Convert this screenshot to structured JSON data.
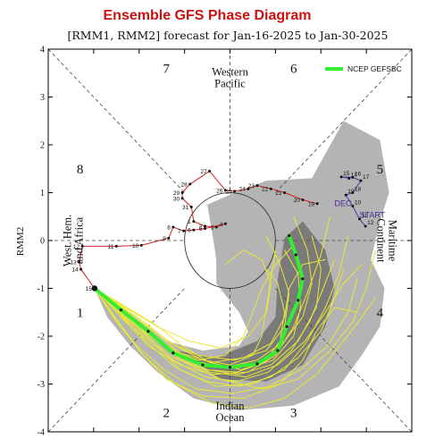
{
  "chart_data": {
    "type": "scatter",
    "title": "Ensemble GFS Phase Diagram",
    "subtitle": "[RMM1, RMM2] forecast for Jan-16-2025 to Jan-30-2025",
    "xlabel": "",
    "ylabel": "RMM2",
    "xlim": [
      -4,
      4
    ],
    "ylim": [
      -4,
      4
    ],
    "x_ticks": [
      "-4",
      "-3",
      "-2",
      "-1",
      "0",
      "1",
      "2",
      "3",
      "4"
    ],
    "y_ticks": [
      "-4",
      "-3",
      "-2",
      "-1",
      "0",
      "1",
      "2",
      "3",
      "4"
    ],
    "grid": false,
    "phases": [
      {
        "label": "1",
        "x": -3.3,
        "y": -1.5
      },
      {
        "label": "2",
        "x": -1.4,
        "y": -3.6
      },
      {
        "label": "3",
        "x": 1.4,
        "y": -3.6
      },
      {
        "label": "4",
        "x": 3.3,
        "y": -1.5
      },
      {
        "label": "5",
        "x": 3.3,
        "y": 1.5
      },
      {
        "label": "6",
        "x": 1.4,
        "y": 3.6
      },
      {
        "label": "7",
        "x": -1.4,
        "y": 3.6
      },
      {
        "label": "8",
        "x": -3.3,
        "y": 1.5
      }
    ],
    "regions": [
      {
        "lines": [
          "Western",
          "Pacific"
        ],
        "x": 0,
        "y": 3.4,
        "rotate": 0
      },
      {
        "lines": [
          "Indian",
          "Ocean"
        ],
        "x": 0,
        "y": -3.58,
        "rotate": 0
      },
      {
        "lines": [
          "West. Hem.",
          "and Africa"
        ],
        "x": -3.45,
        "y": 0,
        "rotate": -90
      },
      {
        "lines": [
          "Maritime",
          "Continent"
        ],
        "x": 3.45,
        "y": 0,
        "rotate": 90
      }
    ],
    "legend": {
      "label": "NCEP GEFSBC",
      "color": "#33ee33",
      "position": "top-right"
    },
    "observed": {
      "color": "#cc2222",
      "points": [
        {
          "d": "19",
          "x": 1.92,
          "y": 0.77
        },
        {
          "d": "20",
          "x": 1.6,
          "y": 0.85
        },
        {
          "d": "21",
          "x": 1.2,
          "y": 1.0
        },
        {
          "d": "22",
          "x": 0.9,
          "y": 1.08
        },
        {
          "d": "23",
          "x": 0.6,
          "y": 1.15
        },
        {
          "d": "24",
          "x": 0.4,
          "y": 1.08
        },
        {
          "d": "25",
          "x": 0.1,
          "y": 1.03
        },
        {
          "d": "26",
          "x": -0.1,
          "y": 1.05
        },
        {
          "d": "27",
          "x": -0.45,
          "y": 1.45
        },
        {
          "d": "28",
          "x": -0.88,
          "y": 1.18
        },
        {
          "d": "29",
          "x": -1.05,
          "y": 1.0
        },
        {
          "d": "30",
          "x": -1.05,
          "y": 0.88
        },
        {
          "d": "31",
          "x": -0.85,
          "y": 0.7
        },
        {
          "d": "1",
          "x": -0.8,
          "y": 0.4
        },
        {
          "d": "2",
          "x": -0.55,
          "y": 0.3
        },
        {
          "d": "3",
          "x": -0.3,
          "y": 0.28
        },
        {
          "d": "4",
          "x": -0.1,
          "y": 0.35
        },
        {
          "d": "5",
          "x": -0.55,
          "y": 0.25
        },
        {
          "d": "6",
          "x": -0.8,
          "y": 0.22
        },
        {
          "d": "7",
          "x": -1.02,
          "y": 0.2
        },
        {
          "d": "8",
          "x": -1.25,
          "y": 0.28
        },
        {
          "d": "9",
          "x": -1.35,
          "y": 0.05
        },
        {
          "d": "10",
          "x": -1.95,
          "y": -0.1
        },
        {
          "d": "11",
          "x": -2.5,
          "y": -0.12
        },
        {
          "d": "12",
          "x": -3.25,
          "y": -0.12
        },
        {
          "d": "13",
          "x": -3.32,
          "y": -0.45
        },
        {
          "d": "14",
          "x": -3.28,
          "y": -0.6
        },
        {
          "d": "15",
          "x": -2.98,
          "y": -1.0
        }
      ]
    },
    "start_track": {
      "color": "#5533aa",
      "points": [
        {
          "d": "14",
          "x": 2.62,
          "y": 1.3
        },
        {
          "d": "15",
          "x": 2.45,
          "y": 1.33
        },
        {
          "d": "16",
          "x": 2.7,
          "y": 1.32
        },
        {
          "d": "17",
          "x": 2.88,
          "y": 1.25
        },
        {
          "d": "18",
          "x": 2.7,
          "y": 1.0
        },
        {
          "d": "19",
          "x": 2.55,
          "y": 0.95
        },
        {
          "d": "10",
          "x": 2.7,
          "y": 0.72
        },
        {
          "d": "11",
          "x": 2.85,
          "y": 0.45
        },
        {
          "d": "12",
          "x": 2.98,
          "y": 0.3
        }
      ]
    },
    "text_labels": [
      {
        "text": "DEC",
        "x": 2.3,
        "y": 0.72
      },
      {
        "text": "START",
        "x": 2.85,
        "y": 0.48
      }
    ],
    "ensemble_mean": {
      "name": "NCEP GEFSBC",
      "color": "#33ee33",
      "points": [
        {
          "x": -2.98,
          "y": -1.0
        },
        {
          "x": -2.4,
          "y": -1.45
        },
        {
          "x": -1.8,
          "y": -1.9
        },
        {
          "x": -1.25,
          "y": -2.35
        },
        {
          "x": -0.6,
          "y": -2.6
        },
        {
          "x": 0.0,
          "y": -2.65
        },
        {
          "x": 0.6,
          "y": -2.58
        },
        {
          "x": 1.05,
          "y": -2.3
        },
        {
          "x": 1.25,
          "y": -1.8
        },
        {
          "x": 1.5,
          "y": -1.25
        },
        {
          "x": 1.6,
          "y": -0.8
        },
        {
          "x": 1.45,
          "y": -0.3
        },
        {
          "x": 1.3,
          "y": 0.1
        }
      ]
    },
    "spread_outer": [
      [
        -2.98,
        -1.0
      ],
      [
        -2.7,
        -1.6
      ],
      [
        -2.2,
        -2.2
      ],
      [
        -1.6,
        -2.75
      ],
      [
        -0.8,
        -3.3
      ],
      [
        0.2,
        -3.55
      ],
      [
        1.4,
        -3.45
      ],
      [
        2.4,
        -3.05
      ],
      [
        2.9,
        -2.4
      ],
      [
        3.3,
        -1.8
      ],
      [
        3.4,
        -1.0
      ],
      [
        3.1,
        -0.4
      ],
      [
        3.3,
        0.4
      ],
      [
        3.5,
        1.0
      ],
      [
        3.3,
        2.1
      ],
      [
        2.5,
        2.5
      ],
      [
        1.8,
        1.3
      ],
      [
        0.8,
        1.25
      ],
      [
        0.1,
        1.0
      ],
      [
        -0.5,
        0.75
      ],
      [
        -0.4,
        0.2
      ],
      [
        -0.3,
        -0.4
      ],
      [
        -0.3,
        -0.9
      ],
      [
        0.2,
        -1.5
      ],
      [
        0.4,
        -1.9
      ],
      [
        0.2,
        -2.2
      ],
      [
        -0.6,
        -2.3
      ],
      [
        -1.4,
        -2.1
      ],
      [
        -2.2,
        -1.5
      ]
    ],
    "spread_inner": [
      [
        -1.2,
        -2.3
      ],
      [
        -0.2,
        -2.9
      ],
      [
        0.8,
        -2.95
      ],
      [
        1.6,
        -2.6
      ],
      [
        2.1,
        -1.8
      ],
      [
        2.3,
        -1.0
      ],
      [
        2.1,
        -0.2
      ],
      [
        1.6,
        0.4
      ],
      [
        1.2,
        0.05
      ],
      [
        1.05,
        -0.8
      ],
      [
        1.0,
        -1.6
      ],
      [
        0.6,
        -2.1
      ],
      [
        -0.3,
        -2.45
      ]
    ],
    "members": [
      [
        [
          -2.98,
          -1.0
        ],
        [
          -2.3,
          -1.55
        ],
        [
          -1.7,
          -2.1
        ],
        [
          -1.1,
          -2.7
        ],
        [
          -0.3,
          -3.05
        ],
        [
          0.5,
          -3.0
        ],
        [
          1.2,
          -2.7
        ],
        [
          1.7,
          -2.1
        ],
        [
          2.1,
          -1.4
        ],
        [
          2.4,
          -0.7
        ],
        [
          2.6,
          0.1
        ]
      ],
      [
        [
          -2.98,
          -1.0
        ],
        [
          -2.5,
          -1.3
        ],
        [
          -1.9,
          -1.7
        ],
        [
          -1.3,
          -2.15
        ],
        [
          -0.7,
          -2.4
        ],
        [
          0.1,
          -2.5
        ],
        [
          0.8,
          -2.3
        ],
        [
          1.2,
          -1.8
        ],
        [
          1.3,
          -1.1
        ],
        [
          1.1,
          -0.5
        ],
        [
          0.8,
          0.1
        ]
      ],
      [
        [
          -2.98,
          -1.0
        ],
        [
          -2.4,
          -1.5
        ],
        [
          -1.7,
          -2.0
        ],
        [
          -1.0,
          -2.55
        ],
        [
          -0.2,
          -2.9
        ],
        [
          0.7,
          -3.1
        ],
        [
          1.5,
          -2.9
        ],
        [
          2.2,
          -2.3
        ],
        [
          2.7,
          -1.7
        ],
        [
          3.0,
          -1.0
        ],
        [
          3.2,
          -0.2
        ]
      ],
      [
        [
          -2.98,
          -1.0
        ],
        [
          -2.6,
          -1.5
        ],
        [
          -2.0,
          -2.3
        ],
        [
          -1.4,
          -2.9
        ],
        [
          -0.6,
          -3.25
        ],
        [
          0.3,
          -3.3
        ],
        [
          1.1,
          -3.0
        ],
        [
          1.6,
          -2.5
        ],
        [
          1.9,
          -1.9
        ],
        [
          2.3,
          -1.4
        ],
        [
          2.8,
          -1.5
        ]
      ],
      [
        [
          -2.98,
          -1.0
        ],
        [
          -2.3,
          -1.4
        ],
        [
          -1.6,
          -1.8
        ],
        [
          -0.9,
          -2.1
        ],
        [
          -0.2,
          -2.25
        ],
        [
          0.4,
          -2.0
        ],
        [
          0.8,
          -1.5
        ],
        [
          0.9,
          -0.9
        ],
        [
          0.7,
          -0.4
        ],
        [
          0.3,
          -0.2
        ],
        [
          -0.1,
          -0.5
        ]
      ],
      [
        [
          -2.98,
          -1.0
        ],
        [
          -2.4,
          -1.6
        ],
        [
          -1.8,
          -2.2
        ],
        [
          -1.1,
          -2.6
        ],
        [
          -0.4,
          -2.8
        ],
        [
          0.4,
          -2.75
        ],
        [
          1.0,
          -2.4
        ],
        [
          1.4,
          -1.8
        ],
        [
          1.7,
          -1.1
        ],
        [
          2.0,
          -0.3
        ],
        [
          2.2,
          0.5
        ]
      ],
      [
        [
          -2.98,
          -1.0
        ],
        [
          -2.35,
          -1.45
        ],
        [
          -1.75,
          -1.95
        ],
        [
          -1.15,
          -2.4
        ],
        [
          -0.5,
          -2.7
        ],
        [
          0.2,
          -2.8
        ],
        [
          0.9,
          -2.6
        ],
        [
          1.5,
          -2.1
        ],
        [
          1.9,
          -1.4
        ],
        [
          2.0,
          -0.6
        ],
        [
          1.8,
          0.1
        ]
      ],
      [
        [
          -2.98,
          -1.0
        ],
        [
          -2.5,
          -1.7
        ],
        [
          -1.9,
          -2.4
        ],
        [
          -1.2,
          -3.0
        ],
        [
          -0.4,
          -3.4
        ],
        [
          0.4,
          -3.5
        ],
        [
          1.2,
          -3.3
        ],
        [
          1.9,
          -2.8
        ],
        [
          2.5,
          -2.1
        ],
        [
          2.9,
          -1.6
        ],
        [
          3.2,
          -1.2
        ]
      ],
      [
        [
          -2.98,
          -1.0
        ],
        [
          -2.4,
          -1.4
        ],
        [
          -1.8,
          -1.8
        ],
        [
          -1.2,
          -2.2
        ],
        [
          -0.6,
          -2.5
        ],
        [
          0.0,
          -2.6
        ],
        [
          0.5,
          -2.4
        ],
        [
          0.7,
          -2.0
        ],
        [
          0.8,
          -1.4
        ],
        [
          0.9,
          -0.8
        ],
        [
          1.0,
          -0.2
        ]
      ],
      [
        [
          -2.98,
          -1.0
        ],
        [
          -2.3,
          -1.5
        ],
        [
          -1.6,
          -2.05
        ],
        [
          -0.9,
          -2.5
        ],
        [
          -0.1,
          -2.65
        ],
        [
          0.6,
          -2.5
        ],
        [
          1.2,
          -2.1
        ],
        [
          1.6,
          -1.6
        ],
        [
          1.8,
          -0.9
        ],
        [
          1.7,
          -0.2
        ],
        [
          1.4,
          0.5
        ]
      ],
      [
        [
          -2.98,
          -1.0
        ],
        [
          -2.45,
          -1.55
        ],
        [
          -1.85,
          -2.05
        ],
        [
          -1.25,
          -2.5
        ],
        [
          -0.55,
          -2.85
        ],
        [
          0.15,
          -2.95
        ],
        [
          0.85,
          -2.75
        ],
        [
          1.35,
          -2.3
        ],
        [
          1.75,
          -1.7
        ],
        [
          2.05,
          -1.0
        ],
        [
          2.3,
          -0.4
        ]
      ],
      [
        [
          -2.98,
          -1.0
        ],
        [
          -2.35,
          -1.35
        ],
        [
          -1.65,
          -1.75
        ],
        [
          -1.05,
          -2.2
        ],
        [
          -0.45,
          -2.55
        ],
        [
          0.25,
          -2.7
        ],
        [
          0.95,
          -2.5
        ],
        [
          1.4,
          -2.0
        ],
        [
          1.55,
          -1.4
        ],
        [
          1.5,
          -0.7
        ],
        [
          1.2,
          -0.2
        ]
      ],
      [
        [
          -2.98,
          -1.0
        ],
        [
          -2.55,
          -1.6
        ],
        [
          -2.05,
          -2.2
        ],
        [
          -1.45,
          -2.7
        ],
        [
          -0.75,
          -3.1
        ],
        [
          0.05,
          -3.2
        ],
        [
          0.85,
          -3.05
        ],
        [
          1.55,
          -2.7
        ],
        [
          2.15,
          -2.2
        ],
        [
          2.6,
          -1.5
        ],
        [
          2.8,
          -0.8
        ]
      ],
      [
        [
          -2.98,
          -1.0
        ],
        [
          -2.3,
          -1.45
        ],
        [
          -1.7,
          -1.9
        ],
        [
          -1.1,
          -2.35
        ],
        [
          -0.4,
          -2.55
        ],
        [
          0.3,
          -2.45
        ],
        [
          0.9,
          -2.15
        ],
        [
          1.2,
          -1.6
        ],
        [
          1.3,
          -1.0
        ],
        [
          1.6,
          -0.5
        ],
        [
          2.1,
          -0.4
        ]
      ],
      [
        [
          -2.98,
          -1.0
        ],
        [
          -2.4,
          -1.55
        ],
        [
          -1.8,
          -2.15
        ],
        [
          -1.2,
          -2.65
        ],
        [
          -0.5,
          -2.95
        ],
        [
          0.2,
          -3.05
        ],
        [
          0.9,
          -2.85
        ],
        [
          1.5,
          -2.45
        ],
        [
          2.0,
          -1.9
        ],
        [
          2.3,
          -1.2
        ],
        [
          2.5,
          -0.6
        ]
      ],
      [
        [
          -2.98,
          -1.0
        ],
        [
          -2.45,
          -1.5
        ],
        [
          -1.85,
          -2.0
        ],
        [
          -1.25,
          -2.45
        ],
        [
          -0.55,
          -2.7
        ],
        [
          0.15,
          -2.75
        ],
        [
          0.75,
          -2.55
        ],
        [
          1.1,
          -2.1
        ],
        [
          1.2,
          -1.5
        ],
        [
          1.05,
          -0.9
        ],
        [
          0.8,
          -0.6
        ]
      ],
      [
        [
          -2.98,
          -1.0
        ],
        [
          -2.35,
          -1.5
        ],
        [
          -1.75,
          -2.0
        ],
        [
          -1.15,
          -2.45
        ],
        [
          -0.45,
          -2.75
        ],
        [
          0.35,
          -2.85
        ],
        [
          1.05,
          -2.6
        ],
        [
          1.65,
          -2.1
        ],
        [
          2.1,
          -1.5
        ],
        [
          2.5,
          -0.9
        ],
        [
          2.9,
          -0.5
        ]
      ],
      [
        [
          -2.98,
          -1.0
        ],
        [
          -2.5,
          -1.45
        ],
        [
          -1.9,
          -1.9
        ],
        [
          -1.3,
          -2.3
        ],
        [
          -0.7,
          -2.5
        ],
        [
          -0.1,
          -2.4
        ],
        [
          0.3,
          -2.0
        ],
        [
          0.5,
          -1.5
        ],
        [
          0.7,
          -1.0
        ],
        [
          1.0,
          -0.5
        ],
        [
          1.4,
          -0.1
        ]
      ]
    ]
  }
}
